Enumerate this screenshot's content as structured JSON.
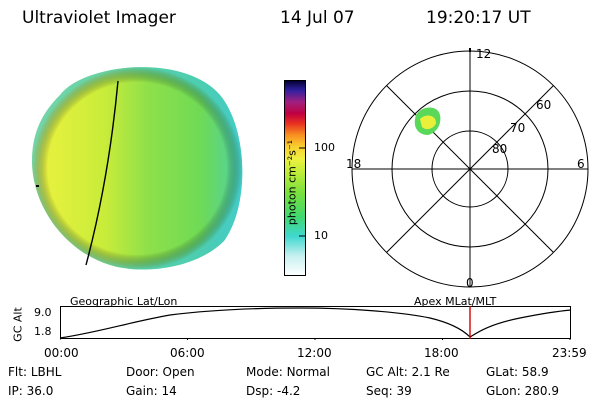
{
  "header": {
    "title": "Ultraviolet Imager",
    "date": "14 Jul 07",
    "time": "19:20:17 UT"
  },
  "colorbar": {
    "unit_label": "photon cm⁻²s⁻¹",
    "ticks": [
      "100",
      "10"
    ]
  },
  "polar_plot": {
    "hour_labels": {
      "top": "12",
      "left": "18",
      "right": "6",
      "bottom": "0"
    },
    "lat_labels": [
      "60",
      "70",
      "80"
    ]
  },
  "timeline": {
    "left_caption": "Geographic Lat/Lon",
    "right_caption": "Apex MLat/MLT",
    "axis_label": "GC Alt",
    "y_ticks": [
      "9.0",
      "1.8"
    ],
    "time_ticks": [
      "00:00",
      "06:00",
      "12:00",
      "18:00",
      "23:59"
    ],
    "current_time_marker": "19:20"
  },
  "status": {
    "row1": [
      {
        "key": "Flt:",
        "value": "LBHL"
      },
      {
        "key": "Door:",
        "value": "Open"
      },
      {
        "key": "Mode:",
        "value": "Normal"
      },
      {
        "key": "GC Alt:",
        "value": "2.1 Re"
      },
      {
        "key": "GLat:",
        "value": "58.9"
      }
    ],
    "row2": [
      {
        "key": "IP:",
        "value": "36.0"
      },
      {
        "key": "Gain:",
        "value": "14"
      },
      {
        "key": "Dsp:",
        "value": "-4.2"
      },
      {
        "key": "Seq:",
        "value": "39"
      },
      {
        "key": "GLon:",
        "value": "280.9"
      }
    ]
  },
  "colors": {
    "marker": "#d40000",
    "disk_yellow": "#e6ee3a",
    "disk_green": "#73e04a",
    "disk_cyan": "#40d9d0"
  }
}
